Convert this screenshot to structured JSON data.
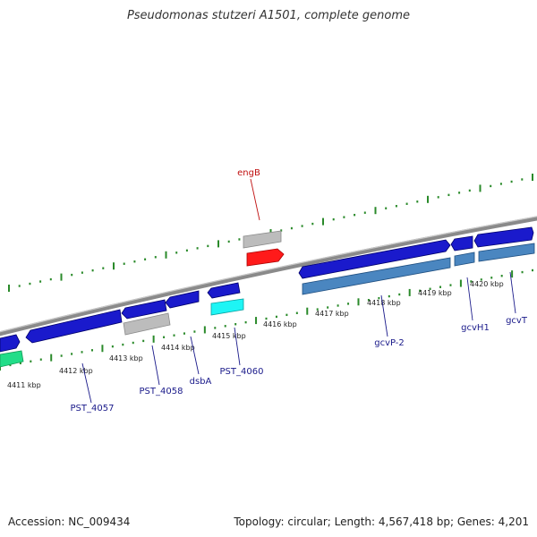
{
  "title": "Pseudomonas stutzeri A1501, complete genome",
  "footer": {
    "accession": "Accession: NC_009434",
    "topology": "Topology: circular; Length: 4,567,418 bp; Genes: 4,201"
  },
  "colors": {
    "backbone": "#8a8a8a",
    "tick": "#2a8a2a",
    "gene_label": "#1a1a8a",
    "highlight_label": "#c01010",
    "cds_forward": "#1a1acc",
    "cds_reverse": "#3377bb",
    "gray_feature": "#b8b8b8",
    "red_feature": "#ff0000",
    "cyan_feature": "#00ffff",
    "green_feature": "#22dd88"
  },
  "kbp_ticks": [
    {
      "text": "4411 kbp"
    },
    {
      "text": "4412 kbp"
    },
    {
      "text": "4413 kbp"
    },
    {
      "text": "4414 kbp"
    },
    {
      "text": "4415 kbp"
    },
    {
      "text": "4416 kbp"
    },
    {
      "text": "4417 kbp"
    },
    {
      "text": "4418 kbp"
    },
    {
      "text": "4419 kbp"
    },
    {
      "text": "4420 kbp"
    }
  ],
  "gene_labels": [
    {
      "name": "engB",
      "highlight": true
    },
    {
      "name": "PST_4057",
      "highlight": false
    },
    {
      "name": "PST_4058",
      "highlight": false
    },
    {
      "name": "dsbA",
      "highlight": false
    },
    {
      "name": "PST_4060",
      "highlight": false
    },
    {
      "name": "gcvP-2",
      "highlight": false
    },
    {
      "name": "gcvH1",
      "highlight": false
    },
    {
      "name": "gcvT",
      "highlight": false
    }
  ]
}
